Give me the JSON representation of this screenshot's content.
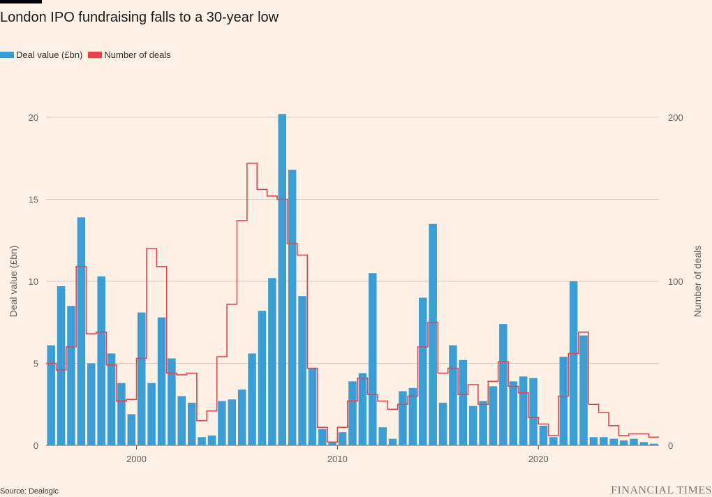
{
  "title": "London IPO fundraising falls to a 30-year low",
  "legend": [
    {
      "label": "Deal value (£bn)",
      "color": "#3a9ed5"
    },
    {
      "label": "Number of deals",
      "color": "#e8424e"
    }
  ],
  "source": "Source: Dealogic",
  "brand": "FINANCIAL TIMES",
  "chart_data": {
    "type": "bar",
    "frequency": "half-yearly",
    "x_start_year": 1995.5,
    "x_tick_labels": [
      "2000",
      "2010",
      "2020"
    ],
    "ylabel": "Deal value (£bn)",
    "y2label": "Number of deals",
    "ylim": [
      0,
      20
    ],
    "y2lim": [
      0,
      200
    ],
    "yticks": [
      "0",
      "5",
      "10",
      "15",
      "20"
    ],
    "y2ticks": [
      "0",
      "100",
      "200"
    ],
    "grid": true,
    "legend_position": "top-left",
    "series": [
      {
        "name": "Deal value (£bn)",
        "type": "bar",
        "axis": "left",
        "color": "#3a9ed5",
        "values": [
          6.1,
          9.7,
          8.5,
          13.9,
          5.0,
          10.3,
          5.6,
          3.8,
          1.9,
          8.1,
          3.8,
          7.8,
          5.3,
          3.0,
          2.6,
          0.5,
          0.6,
          2.7,
          2.8,
          3.4,
          5.6,
          8.2,
          10.2,
          20.2,
          16.8,
          9.1,
          4.7,
          1.0,
          0.2,
          0.8,
          3.9,
          4.4,
          10.5,
          1.1,
          0.4,
          3.3,
          3.5,
          9.0,
          13.5,
          2.6,
          6.1,
          5.2,
          2.4,
          2.7,
          3.6,
          7.4,
          3.9,
          4.2,
          4.1,
          1.2,
          0.5,
          5.4,
          10.0,
          6.7,
          0.5,
          0.5,
          0.4,
          0.3,
          0.4,
          0.2,
          0.1
        ]
      },
      {
        "name": "Number of deals",
        "type": "step",
        "axis": "right",
        "color": "#e8424e",
        "values": [
          50,
          46,
          60,
          109,
          68,
          69,
          49,
          27,
          28,
          53,
          120,
          109,
          44,
          43,
          44,
          15,
          21,
          54,
          86,
          137,
          172,
          156,
          152,
          150,
          123,
          116,
          47,
          11,
          2,
          11,
          27,
          41,
          31,
          27,
          22,
          25,
          30,
          60,
          75,
          44,
          47,
          31,
          37,
          25,
          39,
          51,
          36,
          32,
          17,
          13,
          6,
          30,
          56,
          69,
          25,
          20,
          12,
          6,
          7,
          7,
          5
        ]
      }
    ]
  }
}
